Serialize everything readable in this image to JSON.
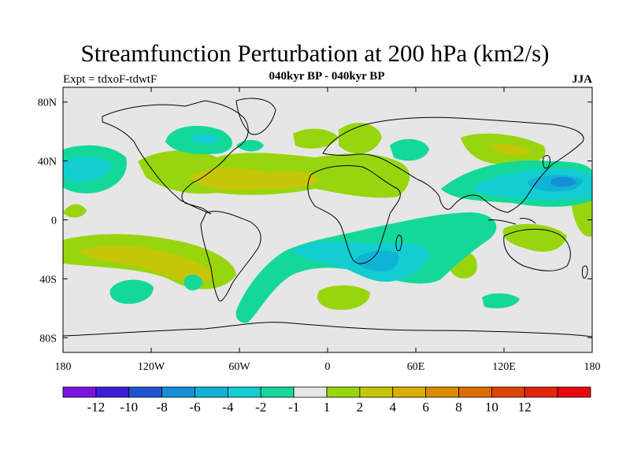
{
  "title": "Streamfunction Perturbation at 200 hPa (km2/s)",
  "left_label": "Expt = tdxoF-tdwtF",
  "center_label": "040kyr BP - 040kyr BP",
  "right_label": "JJA",
  "y_ticks": [
    {
      "label": "80N",
      "lat": 80
    },
    {
      "label": "40N",
      "lat": 40
    },
    {
      "label": "0",
      "lat": 0
    },
    {
      "label": "40S",
      "lat": -40
    },
    {
      "label": "80S",
      "lat": -80
    }
  ],
  "x_ticks": [
    {
      "label": "180",
      "lon": -180
    },
    {
      "label": "120W",
      "lon": -120
    },
    {
      "label": "60W",
      "lon": -60
    },
    {
      "label": "0",
      "lon": 0
    },
    {
      "label": "60E",
      "lon": 60
    },
    {
      "label": "120E",
      "lon": 120
    },
    {
      "label": "180",
      "lon": 180
    }
  ],
  "colorbar": {
    "colors": [
      "#7c14e0",
      "#3c1ed8",
      "#1f55cf",
      "#158fd7",
      "#10b3d6",
      "#13cdd0",
      "#14d89a",
      "#e6e6e6",
      "#98d50e",
      "#c6c609",
      "#dcae04",
      "#dc8c03",
      "#dc6c02",
      "#dc4404",
      "#e2260c",
      "#e60a0a"
    ],
    "labels": [
      "-12",
      "-10",
      "-8",
      "-6",
      "-4",
      "-2",
      "-1",
      "1",
      "2",
      "4",
      "6",
      "8",
      "10",
      "12"
    ]
  },
  "chart_data": {
    "type": "heatmap",
    "title": "Streamfunction Perturbation at 200 hPa (km2/s)",
    "projection": "cylindrical-equidistant",
    "xlim": [
      -180,
      180
    ],
    "ylim": [
      -90,
      90
    ],
    "levels": [
      -12,
      -10,
      -8,
      -6,
      -4,
      -2,
      -1,
      1,
      2,
      4,
      6,
      8,
      10,
      12
    ],
    "background_range": [
      -1,
      1
    ],
    "features": [
      {
        "region": "North Pacific subtropics",
        "center": [
          -165,
          30
        ],
        "value_range": [
          -6,
          -2
        ]
      },
      {
        "region": "Western North Pacific / East Asia",
        "center": [
          155,
          27
        ],
        "value_range": [
          -8,
          -4
        ]
      },
      {
        "region": "South Indian Ocean / southern Africa",
        "center": [
          40,
          -27
        ],
        "value_range": [
          -6,
          -2
        ]
      },
      {
        "region": "North Atlantic subtropics to Middle East",
        "center": [
          -10,
          25
        ],
        "value_range": [
          2,
          6
        ]
      },
      {
        "region": "Southeastern Pacific",
        "center": [
          -100,
          -30
        ],
        "value_range": [
          2,
          4
        ]
      },
      {
        "region": "Central Asia",
        "center": [
          85,
          40
        ],
        "value_range": [
          1,
          4
        ]
      },
      {
        "region": "Northern Canada",
        "center": [
          -80,
          60
        ],
        "value_range": [
          -2,
          -1
        ]
      },
      {
        "region": "Southern Indian Ocean",
        "center": [
          5,
          -45
        ],
        "value_range": [
          1,
          2
        ]
      }
    ]
  }
}
